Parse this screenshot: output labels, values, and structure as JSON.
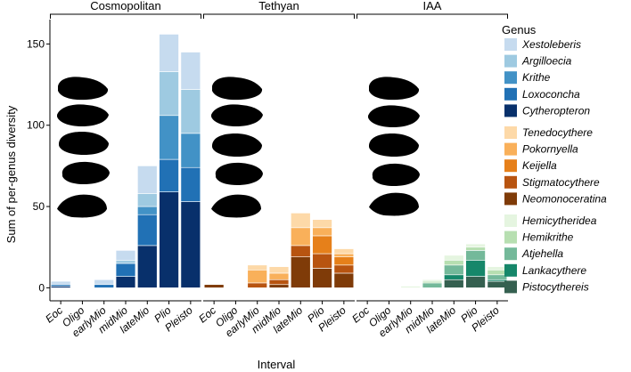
{
  "chart_data": {
    "type": "bar",
    "stacked": true,
    "facets": [
      "Cosmopolitan",
      "Tethyan",
      "IAA"
    ],
    "categories": [
      "Eoc",
      "Oligo",
      "earlyMio",
      "midMio",
      "lateMio",
      "Plio",
      "Pleisto"
    ],
    "xlabel": "Interval",
    "ylabel": "Sum of per-genus diversity",
    "ylim": [
      -8,
      165
    ],
    "yticks": [
      0,
      50,
      100,
      150
    ],
    "legend_title": "Genus",
    "legend_position": "right",
    "legend_groups": [
      [
        "Xestoleberis",
        "Argilloecia",
        "Krithe",
        "Loxoconcha",
        "Cytheropteron"
      ],
      [
        "Tenedocythere",
        "Pokornyella",
        "Keijella",
        "Stigmatocythere",
        "Neomonoceratina"
      ],
      [
        "Hemicytheridea",
        "Hemikrithe",
        "Atjehella",
        "Lankacythere",
        "Pistocythereis"
      ]
    ],
    "colors": {
      "Xestoleberis": "#c6dbef",
      "Argilloecia": "#9ecae1",
      "Krithe": "#4292c6",
      "Loxoconcha": "#2171b5",
      "Cytheropteron": "#08306b",
      "Tenedocythere": "#fdd9a8",
      "Pokornyella": "#f9b05a",
      "Keijella": "#e6801a",
      "Stigmatocythere": "#b85410",
      "Neomonoceratina": "#7f3b08",
      "Hemicytheridea": "#e5f5e0",
      "Hemikrithe": "#b7dfb1",
      "Atjehella": "#74b99a",
      "Lankacythere": "#16876a",
      "Pistocythereis": "#356050"
    },
    "series": {
      "Cosmopolitan": [
        {
          "name": "Cytheropteron",
          "values": [
            1,
            0,
            0,
            7,
            26,
            59,
            53
          ]
        },
        {
          "name": "Loxoconcha",
          "values": [
            1,
            0,
            2,
            8,
            19,
            20,
            21
          ]
        },
        {
          "name": "Krithe",
          "values": [
            0,
            0,
            0,
            0,
            5,
            27,
            21
          ]
        },
        {
          "name": "Argilloecia",
          "values": [
            0,
            0,
            0,
            2,
            8,
            27,
            27
          ]
        },
        {
          "name": "Xestoleberis",
          "values": [
            2,
            0,
            3,
            6,
            17,
            23,
            23
          ]
        }
      ],
      "Tethyan": [
        {
          "name": "Neomonoceratina",
          "values": [
            2,
            0,
            0,
            2,
            19,
            12,
            9
          ]
        },
        {
          "name": "Stigmatocythere",
          "values": [
            0,
            0,
            3,
            3,
            7,
            9,
            5
          ]
        },
        {
          "name": "Keijella",
          "values": [
            0,
            0,
            0,
            0,
            0,
            11,
            5
          ]
        },
        {
          "name": "Pokornyella",
          "values": [
            0,
            0,
            8,
            4,
            11,
            5,
            2
          ]
        },
        {
          "name": "Tenedocythere",
          "values": [
            0,
            0,
            3,
            4,
            9,
            5,
            3
          ]
        }
      ],
      "IAA": [
        {
          "name": "Pistocythereis",
          "values": [
            0,
            0,
            0,
            0,
            5,
            7,
            4
          ]
        },
        {
          "name": "Lankacythere",
          "values": [
            0,
            0,
            0,
            0,
            3,
            10,
            1
          ]
        },
        {
          "name": "Atjehella",
          "values": [
            0,
            0,
            0,
            3,
            6,
            6,
            3
          ]
        },
        {
          "name": "Hemikrithe",
          "values": [
            0,
            0,
            0,
            1,
            3,
            2,
            3
          ]
        },
        {
          "name": "Hemicytheridea",
          "values": [
            0,
            0,
            1,
            1,
            3,
            2,
            2
          ]
        }
      ]
    }
  }
}
